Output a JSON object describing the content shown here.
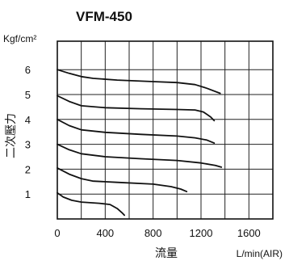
{
  "chart_data": {
    "type": "line",
    "title": "VFM-450",
    "y_unit_label": "Kgf/cm²",
    "ylabel": "二次壓力",
    "xlabel": "流量",
    "x_unit_label": "L/min(AIR)",
    "xlim": [
      0,
      1800
    ],
    "ylim": [
      0,
      6.8
    ],
    "x_ticks": [
      "0",
      "400",
      "800",
      "1200",
      "1600"
    ],
    "y_ticks": [
      "1",
      "2",
      "3",
      "4",
      "5",
      "6"
    ],
    "grid": true,
    "series": [
      {
        "points": [
          [
            0,
            6.0
          ],
          [
            100,
            5.85
          ],
          [
            200,
            5.72
          ],
          [
            300,
            5.65
          ],
          [
            500,
            5.58
          ],
          [
            800,
            5.52
          ],
          [
            1000,
            5.48
          ],
          [
            1150,
            5.4
          ],
          [
            1250,
            5.25
          ],
          [
            1360,
            5.05
          ]
        ]
      },
      {
        "points": [
          [
            0,
            4.95
          ],
          [
            100,
            4.72
          ],
          [
            200,
            4.55
          ],
          [
            400,
            4.47
          ],
          [
            700,
            4.43
          ],
          [
            1000,
            4.4
          ],
          [
            1150,
            4.38
          ],
          [
            1220,
            4.3
          ],
          [
            1280,
            4.1
          ],
          [
            1310,
            3.95
          ]
        ]
      },
      {
        "points": [
          [
            0,
            4.0
          ],
          [
            100,
            3.75
          ],
          [
            200,
            3.58
          ],
          [
            400,
            3.48
          ],
          [
            700,
            3.4
          ],
          [
            1000,
            3.33
          ],
          [
            1150,
            3.26
          ],
          [
            1250,
            3.17
          ],
          [
            1310,
            3.05
          ]
        ]
      },
      {
        "points": [
          [
            0,
            3.0
          ],
          [
            100,
            2.78
          ],
          [
            200,
            2.62
          ],
          [
            400,
            2.5
          ],
          [
            700,
            2.42
          ],
          [
            1000,
            2.35
          ],
          [
            1200,
            2.25
          ],
          [
            1320,
            2.15
          ],
          [
            1370,
            2.08
          ]
        ]
      },
      {
        "points": [
          [
            0,
            2.05
          ],
          [
            100,
            1.8
          ],
          [
            200,
            1.62
          ],
          [
            300,
            1.52
          ],
          [
            500,
            1.47
          ],
          [
            800,
            1.4
          ],
          [
            950,
            1.3
          ],
          [
            1030,
            1.2
          ],
          [
            1080,
            1.1
          ]
        ]
      },
      {
        "points": [
          [
            0,
            1.05
          ],
          [
            50,
            0.88
          ],
          [
            120,
            0.75
          ],
          [
            200,
            0.68
          ],
          [
            350,
            0.63
          ],
          [
            440,
            0.58
          ],
          [
            500,
            0.42
          ],
          [
            540,
            0.25
          ],
          [
            560,
            0.15
          ]
        ]
      }
    ]
  }
}
